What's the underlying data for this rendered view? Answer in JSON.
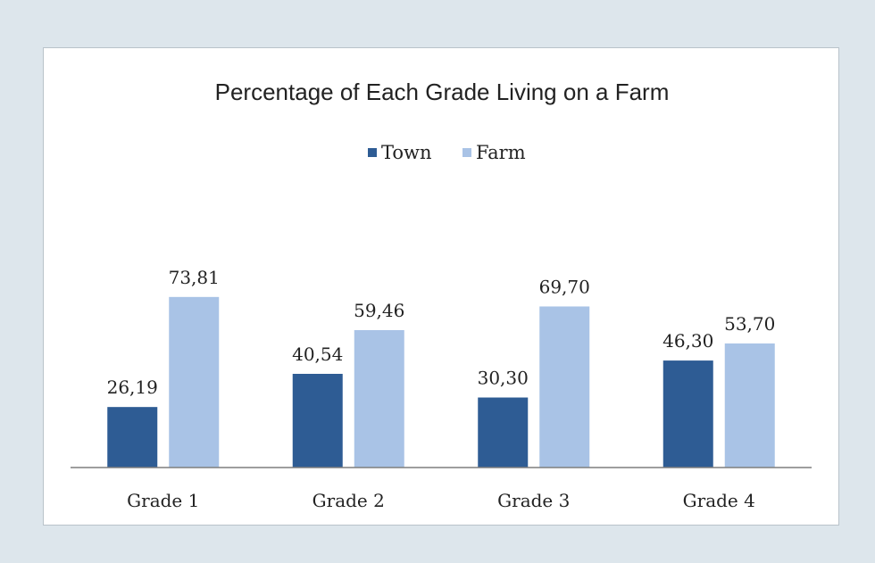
{
  "chart_data": {
    "type": "bar",
    "title": "Percentage of Each Grade Living on a Farm",
    "categories": [
      "Grade 1",
      "Grade 2",
      "Grade 3",
      "Grade 4"
    ],
    "series": [
      {
        "name": "Town",
        "values": [
          26.19,
          40.54,
          30.3,
          46.3
        ],
        "labels": [
          "26,19",
          "40,54",
          "30,30",
          "46,30"
        ],
        "color": "#2e5c94"
      },
      {
        "name": "Farm",
        "values": [
          73.81,
          59.46,
          69.7,
          53.7
        ],
        "labels": [
          "73,81",
          "59,46",
          "69,70",
          "53,70"
        ],
        "color": "#a9c3e6"
      }
    ],
    "ylim": [
      0,
      100
    ],
    "grid": false,
    "legend_position": "top",
    "show_y_axis": false
  },
  "colors": {
    "background": "#dde6ec",
    "plot_background": "#ffffff",
    "axis_line": "#7f7f7f"
  }
}
